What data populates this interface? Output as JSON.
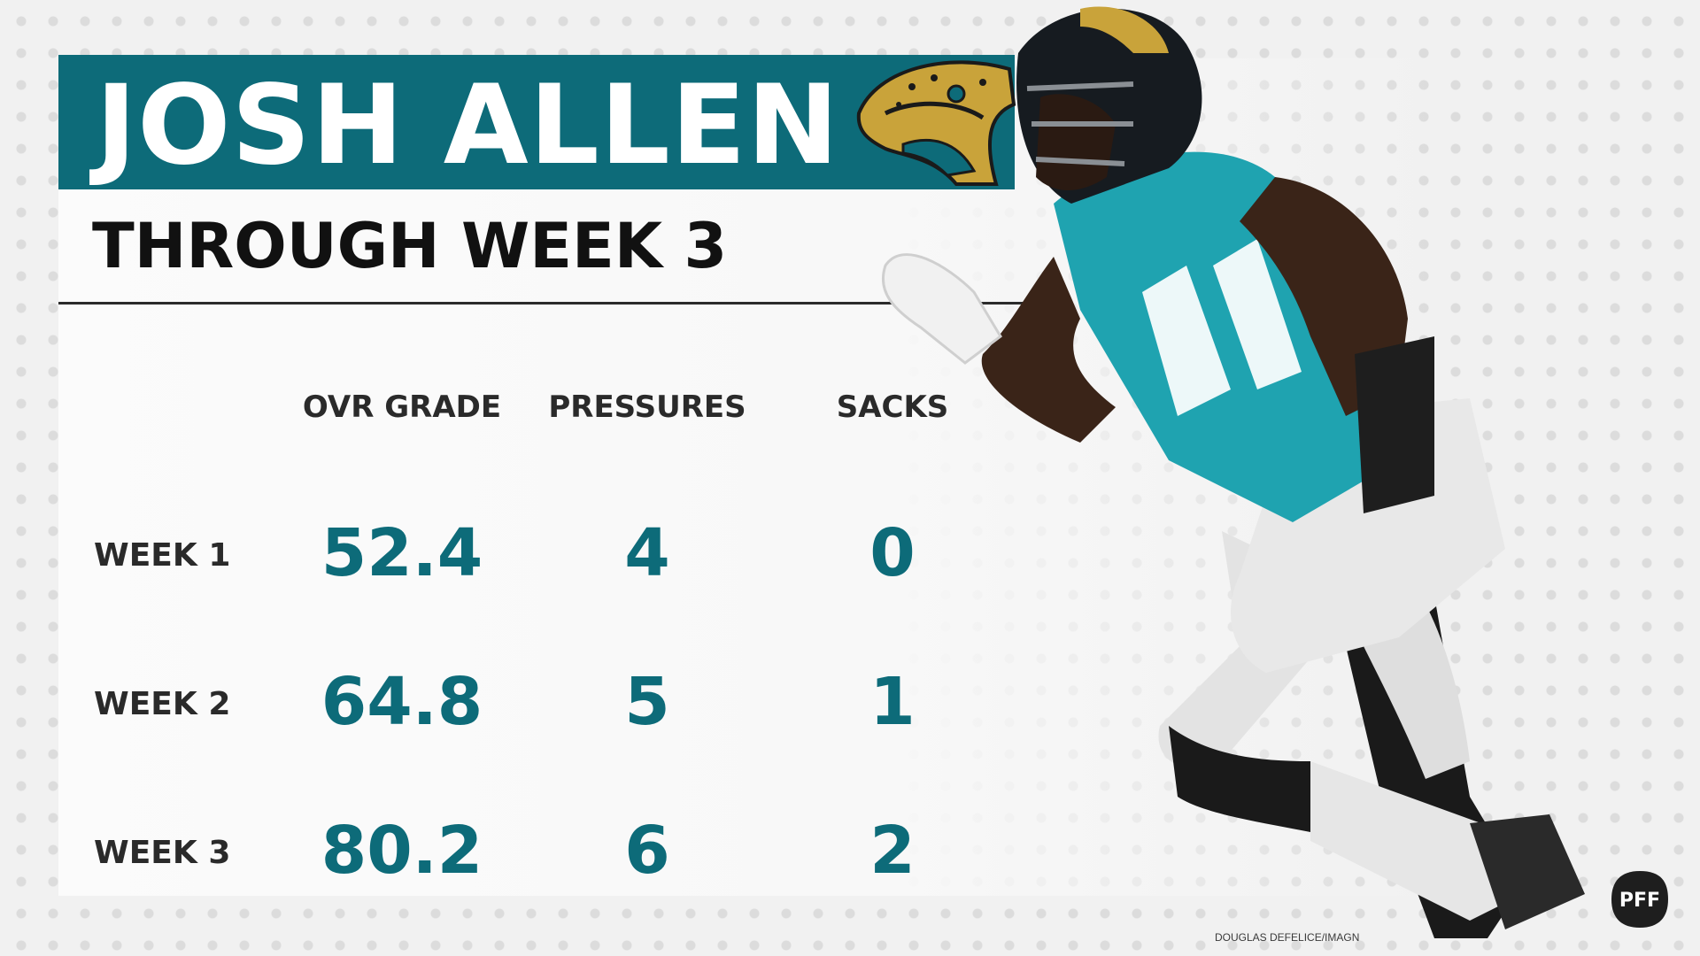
{
  "header": {
    "title": "JOSH ALLEN",
    "subtitle": "THROUGH WEEK 3"
  },
  "table": {
    "columns": [
      "OVR GRADE",
      "PRESSURES",
      "SACKS"
    ],
    "rows": [
      {
        "label": "WEEK 1",
        "values": [
          "52.4",
          "4",
          "0"
        ]
      },
      {
        "label": "WEEK 2",
        "values": [
          "64.8",
          "5",
          "1"
        ]
      },
      {
        "label": "WEEK 3",
        "values": [
          "80.2",
          "6",
          "2"
        ]
      }
    ]
  },
  "footer": {
    "photo_credit": "DOUGLAS DEFELICE/IMAGN",
    "brand": "PFF"
  },
  "colors": {
    "accent": "#0d6b79",
    "jersey": "#1fa3b0",
    "text_dark": "#111111"
  },
  "icons": [
    "jaguars-logo",
    "pff-logo",
    "player-photo"
  ]
}
